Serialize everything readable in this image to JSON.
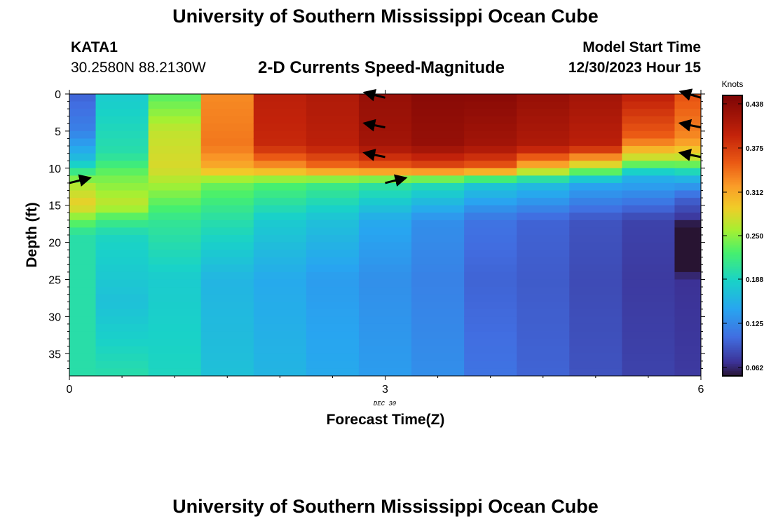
{
  "header": {
    "title": "University of Southern Mississippi Ocean Cube",
    "station_id": "KATA1",
    "station_coords": "30.2580N  88.2130W",
    "chart_title": "2-D Currents Speed-Magnitude",
    "start_time_label": "Model Start Time",
    "start_time_value": "12/30/2023 Hour 15"
  },
  "footer": {
    "title": "University of Southern Mississippi Ocean Cube"
  },
  "chart_data": {
    "type": "heatmap",
    "title": "2-D Currents Speed-Magnitude",
    "xlabel": "Forecast Time(Z)",
    "ylabel": "Depth (ft)",
    "xlim": [
      0,
      6
    ],
    "ylim": [
      38,
      0
    ],
    "x_ticks": [
      0,
      3,
      6
    ],
    "y_ticks": [
      0,
      5,
      10,
      15,
      20,
      25,
      30,
      35
    ],
    "date_label": "DEC 30",
    "colorbar": {
      "title": "Knots",
      "range": [
        0.05,
        0.45
      ],
      "ticks": [
        0.062,
        0.125,
        0.188,
        0.25,
        0.312,
        0.375,
        0.438
      ]
    },
    "columns": [
      {
        "x0": 0.0,
        "x1": 0.25
      },
      {
        "x0": 0.25,
        "x1": 0.75
      },
      {
        "x0": 0.75,
        "x1": 1.25
      },
      {
        "x0": 1.25,
        "x1": 1.75
      },
      {
        "x0": 1.75,
        "x1": 2.25
      },
      {
        "x0": 2.25,
        "x1": 2.75
      },
      {
        "x0": 2.75,
        "x1": 3.25
      },
      {
        "x0": 3.25,
        "x1": 3.75
      },
      {
        "x0": 3.75,
        "x1": 4.25
      },
      {
        "x0": 4.25,
        "x1": 4.75
      },
      {
        "x0": 4.75,
        "x1": 5.25
      },
      {
        "x0": 5.25,
        "x1": 5.75
      },
      {
        "x0": 5.75,
        "x1": 6.0
      }
    ],
    "depth_profiles": [
      [
        [
          0,
          0.1
        ],
        [
          5,
          0.12
        ],
        [
          9,
          0.17
        ],
        [
          12,
          0.26
        ],
        [
          15,
          0.29
        ],
        [
          17,
          0.24
        ],
        [
          19,
          0.2
        ],
        [
          38,
          0.2
        ]
      ],
      [
        [
          0,
          0.18
        ],
        [
          8,
          0.2
        ],
        [
          11,
          0.24
        ],
        [
          15,
          0.27
        ],
        [
          17,
          0.22
        ],
        [
          19,
          0.19
        ],
        [
          28,
          0.17
        ],
        [
          38,
          0.2
        ]
      ],
      [
        [
          0,
          0.23
        ],
        [
          5,
          0.27
        ],
        [
          10,
          0.28
        ],
        [
          14,
          0.24
        ],
        [
          17,
          0.21
        ],
        [
          25,
          0.18
        ],
        [
          38,
          0.19
        ]
      ],
      [
        [
          0,
          0.33
        ],
        [
          7,
          0.34
        ],
        [
          10,
          0.31
        ],
        [
          12,
          0.24
        ],
        [
          17,
          0.2
        ],
        [
          25,
          0.16
        ],
        [
          38,
          0.17
        ]
      ],
      [
        [
          0,
          0.4
        ],
        [
          7,
          0.39
        ],
        [
          10,
          0.32
        ],
        [
          12,
          0.23
        ],
        [
          17,
          0.18
        ],
        [
          25,
          0.15
        ],
        [
          38,
          0.16
        ]
      ],
      [
        [
          0,
          0.41
        ],
        [
          7,
          0.4
        ],
        [
          10,
          0.34
        ],
        [
          12,
          0.22
        ],
        [
          17,
          0.17
        ],
        [
          25,
          0.14
        ],
        [
          38,
          0.15
        ]
      ],
      [
        [
          0,
          0.43
        ],
        [
          7,
          0.42
        ],
        [
          10,
          0.35
        ],
        [
          12,
          0.21
        ],
        [
          17,
          0.15
        ],
        [
          25,
          0.13
        ],
        [
          38,
          0.14
        ]
      ],
      [
        [
          0,
          0.44
        ],
        [
          7,
          0.43
        ],
        [
          10,
          0.36
        ],
        [
          12,
          0.2
        ],
        [
          17,
          0.13
        ],
        [
          25,
          0.12
        ],
        [
          38,
          0.13
        ]
      ],
      [
        [
          0,
          0.44
        ],
        [
          7,
          0.42
        ],
        [
          10,
          0.35
        ],
        [
          12,
          0.18
        ],
        [
          17,
          0.11
        ],
        [
          25,
          0.1
        ],
        [
          38,
          0.11
        ]
      ],
      [
        [
          0,
          0.43
        ],
        [
          7,
          0.41
        ],
        [
          10,
          0.3
        ],
        [
          12,
          0.17
        ],
        [
          17,
          0.1
        ],
        [
          25,
          0.095
        ],
        [
          38,
          0.1
        ]
      ],
      [
        [
          0,
          0.42
        ],
        [
          7,
          0.4
        ],
        [
          10,
          0.26
        ],
        [
          12,
          0.15
        ],
        [
          17,
          0.09
        ],
        [
          25,
          0.085
        ],
        [
          38,
          0.09
        ]
      ],
      [
        [
          0,
          0.4
        ],
        [
          6,
          0.35
        ],
        [
          9,
          0.26
        ],
        [
          11,
          0.16
        ],
        [
          17,
          0.08
        ],
        [
          25,
          0.075
        ],
        [
          38,
          0.08
        ]
      ],
      [
        [
          0,
          0.36
        ],
        [
          6,
          0.33
        ],
        [
          9,
          0.26
        ],
        [
          11,
          0.17
        ],
        [
          14,
          0.1
        ],
        [
          17,
          0.07
        ],
        [
          18,
          0.04
        ],
        [
          23,
          0.04
        ],
        [
          25,
          0.07
        ],
        [
          38,
          0.075
        ]
      ]
    ],
    "vectors": [
      {
        "time": 0,
        "depth": 12,
        "dx": 1,
        "dy": -0.25
      },
      {
        "time": 3,
        "depth": 0.5,
        "dx": -1,
        "dy": -0.25
      },
      {
        "time": 3,
        "depth": 4.5,
        "dx": -1,
        "dy": -0.2
      },
      {
        "time": 3,
        "depth": 8.5,
        "dx": -1,
        "dy": -0.2
      },
      {
        "time": 3,
        "depth": 12,
        "dx": 1,
        "dy": -0.25
      },
      {
        "time": 6,
        "depth": 0.5,
        "dx": -1,
        "dy": -0.3
      },
      {
        "time": 6,
        "depth": 4.5,
        "dx": -1,
        "dy": -0.2
      },
      {
        "time": 6,
        "depth": 8.5,
        "dx": -1,
        "dy": -0.2
      }
    ]
  }
}
